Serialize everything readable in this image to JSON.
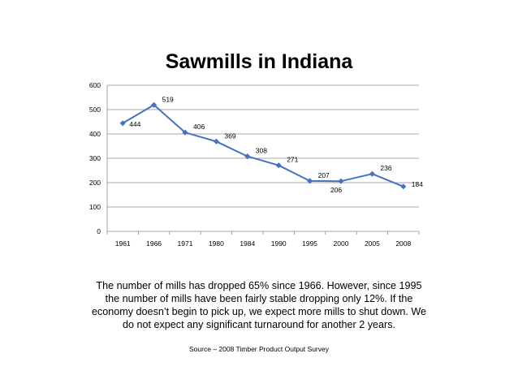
{
  "slide": {
    "body": "The number of mills has dropped 65% since 1966.  However, since 1995 the number of mills have been fairly stable dropping only 12%.  If the economy doesn’t begin to pick up, we expect more mills to shut down.  We do not expect any significant turnaround for another 2 years.",
    "source": "Source – 2008 Timber Product Output Survey"
  },
  "chart_data": {
    "type": "line",
    "title": "Sawmills in Indiana",
    "categories": [
      "1961",
      "1966",
      "1971",
      "1980",
      "1984",
      "1990",
      "1995",
      "2000",
      "2005",
      "2008"
    ],
    "series": [
      {
        "values": [
          444,
          519,
          406,
          369,
          308,
          271,
          207,
          206,
          236,
          184
        ],
        "color": "#4472C4"
      }
    ],
    "ylim": [
      0,
      600
    ],
    "yticks": [
      0,
      100,
      200,
      300,
      400,
      500,
      600
    ],
    "grid": true,
    "legend": "none",
    "data_labels": true
  }
}
